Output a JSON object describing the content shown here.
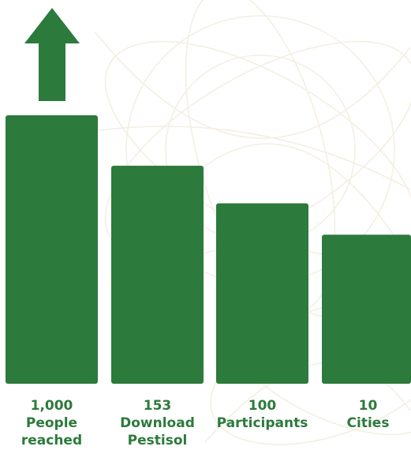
{
  "colors": {
    "bar": "#2c7a3c",
    "background": "#ffffff",
    "background_pattern": "#f3efe3"
  },
  "chart_data": {
    "type": "bar",
    "categories": [
      "People reached",
      "Download Pestisol",
      "Participants",
      "Cities"
    ],
    "values": [
      1000,
      153,
      100,
      10
    ],
    "value_labels": [
      "1,000",
      "153",
      "100",
      "10"
    ],
    "category_label_lines": [
      [
        "People",
        "reached"
      ],
      [
        "Download",
        "Pestisol"
      ],
      [
        "Participants"
      ],
      [
        "Cities"
      ]
    ],
    "relative_heights": [
      1.0,
      0.812,
      0.672,
      0.555
    ],
    "title": "",
    "xlabel": "",
    "ylabel": "",
    "grid": false,
    "legend": "none",
    "annotations": [
      {
        "type": "up-arrow",
        "category": "People reached",
        "meaning": "value exceeds scale"
      }
    ]
  }
}
